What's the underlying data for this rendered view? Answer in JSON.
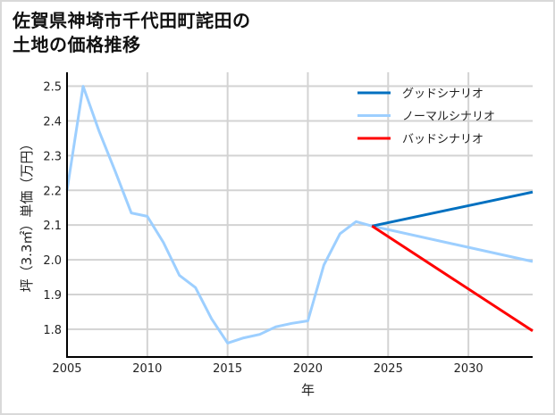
{
  "title_line1": "佐賀県神埼市千代田町詫田の",
  "title_line2": "土地の価格推移",
  "chart_data": {
    "type": "line",
    "title": "佐賀県神埼市千代田町詫田の土地の価格推移",
    "xlabel": "年",
    "ylabel": "坪（3.3㎡）単価（万円）",
    "xlim": [
      2005,
      2034
    ],
    "ylim": [
      1.72,
      2.54
    ],
    "xticks": [
      2005,
      2010,
      2015,
      2020,
      2025,
      2030
    ],
    "yticks": [
      1.8,
      1.9,
      2.0,
      2.1,
      2.2,
      2.3,
      2.4,
      2.5
    ],
    "grid": true,
    "legend_position": "upper right",
    "series": [
      {
        "name": "グッドシナリオ",
        "color": "#0070c0",
        "x": [
          2024,
          2034
        ],
        "values": [
          2.097,
          2.195
        ]
      },
      {
        "name": "ノーマルシナリオ",
        "color": "#9dcfff",
        "x": [
          2005,
          2006,
          2007,
          2008,
          2009,
          2010,
          2011,
          2012,
          2013,
          2014,
          2015,
          2016,
          2017,
          2018,
          2019,
          2020,
          2021,
          2022,
          2023,
          2024,
          2034
        ],
        "values": [
          2.2,
          2.5,
          2.37,
          2.255,
          2.135,
          2.125,
          2.05,
          1.955,
          1.92,
          1.83,
          1.76,
          1.775,
          1.785,
          1.807,
          1.817,
          1.824,
          1.985,
          2.075,
          2.11,
          2.097,
          1.995
        ]
      },
      {
        "name": "バッドシナリオ",
        "color": "#ff0000",
        "x": [
          2024,
          2034
        ],
        "values": [
          2.097,
          1.795
        ]
      }
    ]
  }
}
